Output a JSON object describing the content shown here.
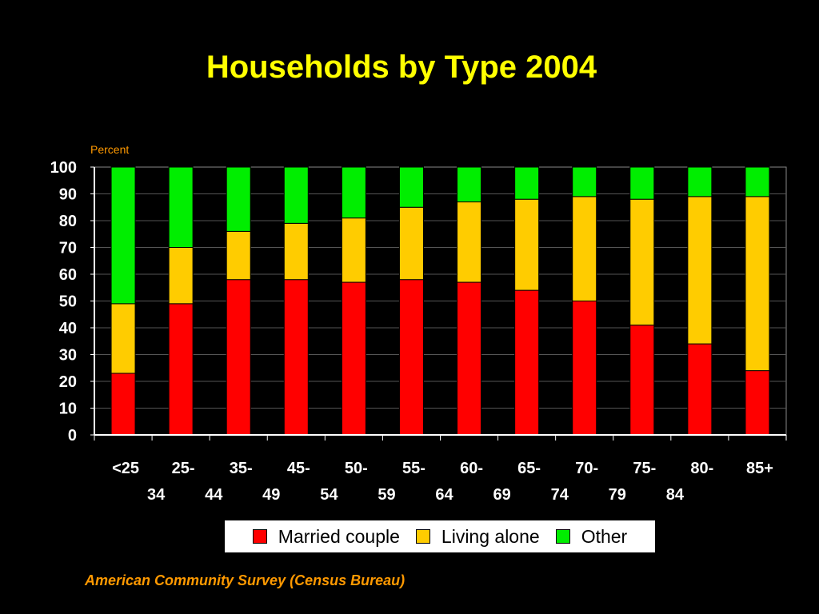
{
  "chart_data": {
    "type": "bar",
    "stacked": true,
    "title": "Households by Type 2004",
    "ylabel": "Percent",
    "xlabel": "",
    "ylim": [
      0,
      100
    ],
    "yticks": [
      0,
      10,
      20,
      30,
      40,
      50,
      60,
      70,
      80,
      90,
      100
    ],
    "categories": [
      "<25",
      "25-34",
      "35-44",
      "45-49",
      "50-54",
      "55-59",
      "60-64",
      "65-69",
      "70-74",
      "75-79",
      "80-84",
      "85+"
    ],
    "category_lines": [
      [
        "<25"
      ],
      [
        "25-",
        "34"
      ],
      [
        "35-",
        "44"
      ],
      [
        "45-",
        "49"
      ],
      [
        "50-",
        "54"
      ],
      [
        "55-",
        "59"
      ],
      [
        "60-",
        "64"
      ],
      [
        "65-",
        "69"
      ],
      [
        "70-",
        "74"
      ],
      [
        "75-",
        "79"
      ],
      [
        "80-",
        "84"
      ],
      [
        "85+"
      ]
    ],
    "series": [
      {
        "name": "Married couple",
        "color": "#ff0000",
        "values": [
          23,
          49,
          58,
          58,
          57,
          58,
          57,
          54,
          50,
          41,
          34,
          24
        ]
      },
      {
        "name": "Living alone",
        "color": "#ffcc00",
        "values": [
          26,
          21,
          18,
          21,
          24,
          27,
          30,
          34,
          39,
          47,
          55,
          65
        ]
      },
      {
        "name": "Other",
        "color": "#00ee00",
        "values": [
          51,
          30,
          24,
          21,
          19,
          15,
          13,
          12,
          11,
          12,
          11,
          11
        ]
      }
    ],
    "grid": true,
    "legend_position": "bottom",
    "source": "American Community Survey (Census Bureau)"
  }
}
